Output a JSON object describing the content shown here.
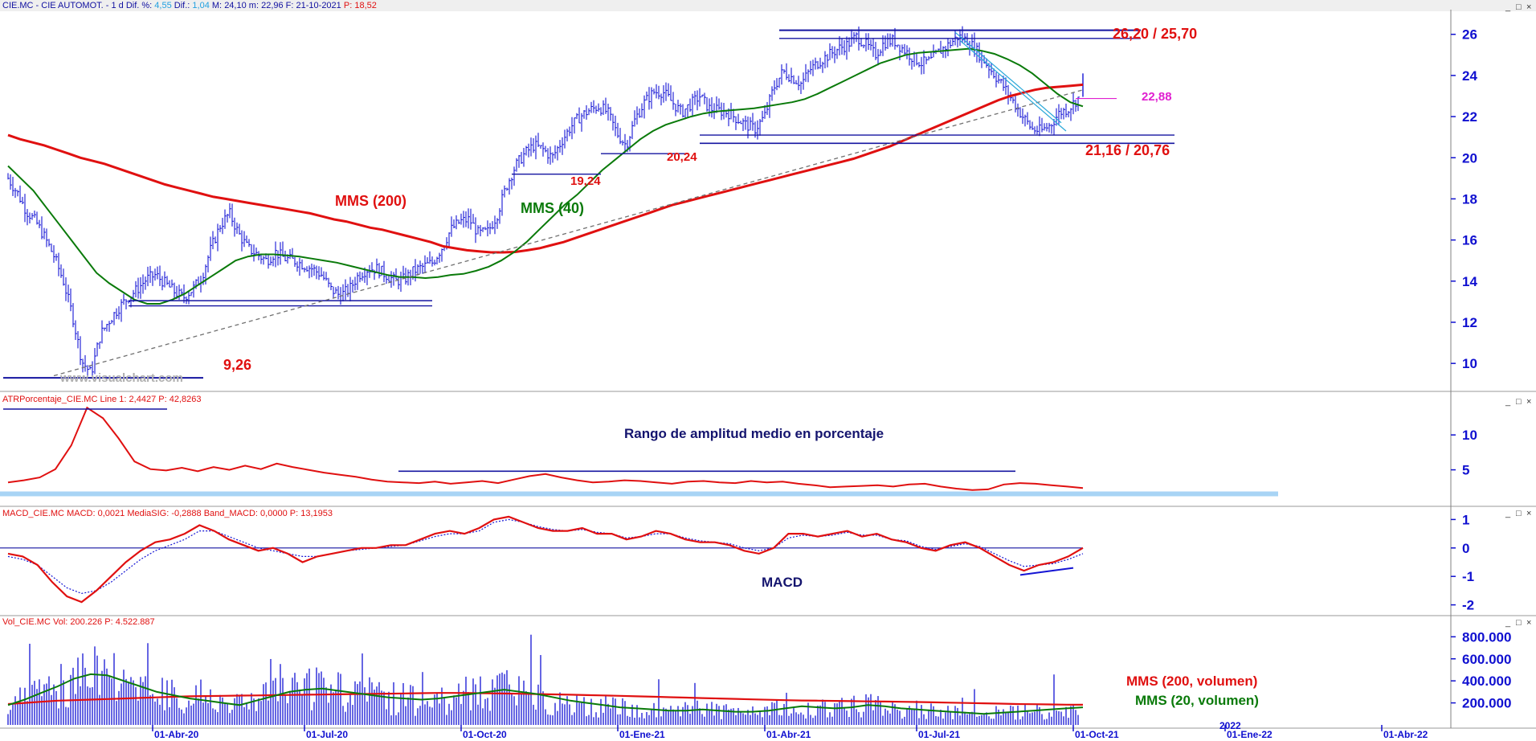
{
  "chart_data": [
    {
      "type": "ohlc",
      "name": "price",
      "header": {
        "symbol": "CIE.MC - CIE AUTOMOT. - 1 d",
        "dif_pct_label": "Dif. %:",
        "dif_pct": "4,55",
        "dif_label": "Dif.:",
        "dif": "1,04",
        "m_label": "M:",
        "m": "24,10",
        "m2_label": "m:",
        "m2": "22,96",
        "f_label": "F:",
        "f": "21-10-2021",
        "p_label": "P:",
        "p": "18,52"
      },
      "ylim": [
        8.6,
        27.2
      ],
      "yticks": [
        10,
        12,
        14,
        16,
        18,
        20,
        22,
        24,
        26
      ],
      "close": [
        19.0,
        18.3,
        17.4,
        16.9,
        16.1,
        15.2,
        14.0,
        12.3,
        10.1,
        9.5,
        11.4,
        12.1,
        12.7,
        13.2,
        13.6,
        14.1,
        14.3,
        13.9,
        13.5,
        13.2,
        13.6,
        14.2,
        15.6,
        16.7,
        17.3,
        16.3,
        15.6,
        15.3,
        15.0,
        15.4,
        15.1,
        15.0,
        14.8,
        14.6,
        14.3,
        13.6,
        13.3,
        13.6,
        14.3,
        14.6,
        14.6,
        14.3,
        14.0,
        14.1,
        14.5,
        14.7,
        14.9,
        15.6,
        16.5,
        16.9,
        17.0,
        16.3,
        16.4,
        17.2,
        18.6,
        19.6,
        20.2,
        20.6,
        20.4,
        20.0,
        20.8,
        21.5,
        22.0,
        22.3,
        22.5,
        22.2,
        21.2,
        20.6,
        21.9,
        22.7,
        23.2,
        23.2,
        22.7,
        22.2,
        22.6,
        23.0,
        22.4,
        22.3,
        22.2,
        21.9,
        21.6,
        21.4,
        22.0,
        23.4,
        24.2,
        23.9,
        23.6,
        24.3,
        24.7,
        25.0,
        25.3,
        25.5,
        25.9,
        25.5,
        25.0,
        25.6,
        25.7,
        25.3,
        24.9,
        24.6,
        24.7,
        25.2,
        25.5,
        25.9,
        25.7,
        25.2,
        24.6,
        24.0,
        23.4,
        22.7,
        22.0,
        21.4,
        21.3,
        21.6,
        22.2,
        22.4,
        22.9
      ],
      "sma200": [
        21.1,
        20.9,
        20.75,
        20.6,
        20.4,
        20.2,
        20.0,
        19.85,
        19.7,
        19.5,
        19.3,
        19.1,
        18.9,
        18.7,
        18.55,
        18.4,
        18.25,
        18.1,
        18.0,
        17.9,
        17.8,
        17.7,
        17.6,
        17.5,
        17.4,
        17.3,
        17.15,
        17.0,
        16.9,
        16.75,
        16.6,
        16.5,
        16.35,
        16.2,
        16.05,
        15.9,
        15.7,
        15.6,
        15.5,
        15.45,
        15.4,
        15.4,
        15.42,
        15.5,
        15.6,
        15.75,
        15.9,
        16.1,
        16.3,
        16.5,
        16.7,
        16.9,
        17.1,
        17.3,
        17.5,
        17.7,
        17.85,
        18.0,
        18.15,
        18.3,
        18.45,
        18.6,
        18.75,
        18.9,
        19.05,
        19.2,
        19.35,
        19.5,
        19.65,
        19.8,
        19.95,
        20.15,
        20.35,
        20.55,
        20.8,
        21.05,
        21.3,
        21.55,
        21.8,
        22.05,
        22.3,
        22.55,
        22.8,
        23.0,
        23.15,
        23.3,
        23.4,
        23.45,
        23.5,
        23.55
      ],
      "sma40": [
        19.6,
        19.0,
        18.4,
        17.6,
        16.8,
        16.0,
        15.2,
        14.4,
        13.9,
        13.5,
        13.1,
        12.9,
        12.9,
        13.1,
        13.4,
        13.8,
        14.2,
        14.6,
        15.0,
        15.2,
        15.3,
        15.3,
        15.25,
        15.2,
        15.1,
        15.0,
        14.9,
        14.75,
        14.6,
        14.45,
        14.3,
        14.2,
        14.2,
        14.15,
        14.2,
        14.3,
        14.35,
        14.5,
        14.7,
        15.0,
        15.4,
        15.9,
        16.5,
        17.1,
        17.7,
        18.2,
        18.8,
        19.4,
        19.9,
        20.4,
        20.9,
        21.3,
        21.6,
        21.8,
        22.0,
        22.15,
        22.25,
        22.3,
        22.35,
        22.4,
        22.5,
        22.6,
        22.7,
        22.85,
        23.1,
        23.4,
        23.7,
        24.0,
        24.3,
        24.6,
        24.8,
        25.0,
        25.1,
        25.15,
        25.2,
        25.25,
        25.3,
        25.2,
        25.05,
        24.8,
        24.5,
        24.1,
        23.6,
        23.1,
        22.7,
        22.5
      ]
    },
    {
      "type": "line",
      "name": "atr",
      "title": "ATRPorcentaje_CIE.MC",
      "line1_label": "Line 1:",
      "line1": "2,4427",
      "p_label": "P:",
      "p": "42,8263",
      "ylim": [
        0,
        15.2
      ],
      "yticks": [
        5,
        10
      ],
      "values": [
        3.2,
        3.5,
        3.9,
        5.1,
        8.5,
        13.9,
        12.4,
        9.5,
        6.2,
        5.1,
        4.9,
        5.3,
        4.8,
        5.4,
        5.0,
        5.6,
        5.1,
        5.9,
        5.4,
        5.0,
        4.6,
        4.3,
        4.0,
        3.6,
        3.3,
        3.2,
        3.1,
        3.3,
        3.0,
        3.2,
        3.4,
        3.1,
        3.6,
        4.1,
        4.4,
        3.9,
        3.5,
        3.2,
        3.3,
        3.5,
        3.4,
        3.2,
        3.0,
        3.3,
        3.4,
        3.2,
        3.1,
        3.4,
        3.2,
        3.3,
        3.0,
        2.8,
        2.5,
        2.6,
        2.7,
        2.8,
        2.6,
        2.9,
        3.0,
        2.6,
        2.3,
        2.1,
        2.2,
        2.9,
        3.1,
        3.0,
        2.8,
        2.6,
        2.4
      ]
    },
    {
      "type": "line",
      "name": "macd",
      "title": "MACD_CIE.MC",
      "macd_label": "MACD:",
      "macd": "0,0021",
      "sig_label": "MediaSIG:",
      "sig": "-0,2888",
      "band_label": "Band_MACD:",
      "band": "0,0000",
      "p_label": "P:",
      "p": "13,1953",
      "ylim": [
        -2.35,
        1.35
      ],
      "yticks": [
        -2,
        -1,
        0,
        1
      ],
      "macd_values": [
        -0.2,
        -0.3,
        -0.6,
        -1.2,
        -1.7,
        -1.9,
        -1.5,
        -1.0,
        -0.5,
        -0.1,
        0.2,
        0.3,
        0.5,
        0.8,
        0.6,
        0.3,
        0.1,
        -0.1,
        0.0,
        -0.2,
        -0.5,
        -0.3,
        -0.2,
        -0.1,
        0.0,
        0.0,
        0.1,
        0.1,
        0.3,
        0.5,
        0.6,
        0.5,
        0.7,
        1.0,
        1.1,
        0.9,
        0.7,
        0.6,
        0.6,
        0.7,
        0.5,
        0.5,
        0.3,
        0.4,
        0.6,
        0.5,
        0.3,
        0.2,
        0.2,
        0.1,
        -0.1,
        -0.2,
        0.0,
        0.5,
        0.5,
        0.4,
        0.5,
        0.6,
        0.4,
        0.5,
        0.3,
        0.2,
        0.0,
        -0.1,
        0.1,
        0.2,
        0.0,
        -0.3,
        -0.6,
        -0.8,
        -0.6,
        -0.5,
        -0.3,
        0.0
      ],
      "signal_values": [
        -0.3,
        -0.4,
        -0.6,
        -1.0,
        -1.4,
        -1.6,
        -1.5,
        -1.2,
        -0.8,
        -0.4,
        -0.1,
        0.1,
        0.3,
        0.6,
        0.6,
        0.4,
        0.2,
        0.0,
        -0.1,
        -0.2,
        -0.3,
        -0.3,
        -0.2,
        -0.1,
        -0.05,
        0.0,
        0.05,
        0.1,
        0.25,
        0.4,
        0.5,
        0.5,
        0.6,
        0.9,
        1.0,
        0.9,
        0.75,
        0.65,
        0.6,
        0.65,
        0.55,
        0.5,
        0.35,
        0.4,
        0.5,
        0.5,
        0.35,
        0.25,
        0.2,
        0.15,
        0.0,
        -0.1,
        0.0,
        0.35,
        0.45,
        0.4,
        0.45,
        0.55,
        0.45,
        0.45,
        0.3,
        0.25,
        0.05,
        -0.05,
        0.05,
        0.15,
        0.05,
        -0.2,
        -0.45,
        -0.65,
        -0.6,
        -0.55,
        -0.4,
        -0.2
      ]
    },
    {
      "type": "bar",
      "name": "volume",
      "title": "Vol_CIE.MC",
      "vol_label": "Vol:",
      "vol": "200.226",
      "p_label": "P:",
      "p": "4.522.887",
      "ylim": [
        0,
        890000
      ],
      "yticks": [
        "200.000",
        "400.000",
        "600.000",
        "800.000"
      ],
      "ytick_values": [
        200000,
        400000,
        600000,
        800000
      ],
      "vol_ma20": [
        180000,
        230000,
        290000,
        350000,
        420000,
        460000,
        450000,
        400000,
        350000,
        300000,
        270000,
        240000,
        220000,
        200000,
        180000,
        220000,
        260000,
        300000,
        320000,
        330000,
        310000,
        290000,
        270000,
        250000,
        240000,
        230000,
        240000,
        260000,
        280000,
        300000,
        320000,
        300000,
        280000,
        250000,
        220000,
        200000,
        180000,
        160000,
        150000,
        140000,
        130000,
        130000,
        140000,
        130000,
        120000,
        120000,
        130000,
        150000,
        170000,
        160000,
        150000,
        160000,
        180000,
        170000,
        150000,
        140000,
        130000,
        120000,
        110000,
        100000,
        110000,
        120000,
        130000,
        140000,
        150000,
        160000
      ],
      "vol_ma200": [
        190000,
        200000,
        210000,
        220000,
        225000,
        230000,
        235000,
        240000,
        245000,
        250000,
        255000,
        260000,
        262000,
        264000,
        266000,
        268000,
        270000,
        272000,
        274000,
        276000,
        278000,
        280000,
        282000,
        284000,
        286000,
        288000,
        290000,
        290000,
        289000,
        287000,
        285000,
        283000,
        280000,
        277000,
        274000,
        271000,
        268000,
        264000,
        260000,
        256000,
        252000,
        248000,
        244000,
        240000,
        236000,
        232000,
        228000,
        225000,
        222000,
        220000,
        218000,
        216000,
        214000,
        212000,
        210000,
        208000,
        205000,
        202000,
        199000,
        196000,
        193000,
        190000,
        188000,
        186000,
        184000,
        183000
      ]
    }
  ],
  "x_axis": {
    "ticks": [
      {
        "label": "01-Abr-20",
        "idx": 60
      },
      {
        "label": "01-Jul-20",
        "idx": 123
      },
      {
        "label": "01-Oct-20",
        "idx": 188
      },
      {
        "label": "01-Ene-21",
        "idx": 253
      },
      {
        "label": "01-Abr-21",
        "idx": 314
      },
      {
        "label": "01-Jul-21",
        "idx": 377
      },
      {
        "label": "01-Oct-21",
        "idx": 442
      },
      {
        "label": "01-Ene-22",
        "idx": 505
      },
      {
        "label": "01-Abr-22",
        "idx": 570
      }
    ],
    "year_label": "2022",
    "year_label_idx": 503
  },
  "annotations": {
    "resistance": "26,20 / 25,70",
    "pivot": "22,88",
    "support": "21,16 / 20,76",
    "low_2020": "9,26",
    "level_1": "19,24",
    "level_2": "20,24",
    "mms200": "MMS (200)",
    "mms40": "MMS (40)",
    "watermark": "www.visualchart.com",
    "atr_note": "Rango de amplitud medio en porcentaje",
    "macd_label": "MACD",
    "vol_mms200": "MMS (200, volumen)",
    "vol_mms20": "MMS (20, volumen)"
  },
  "colors": {
    "bars": "#1414d4",
    "sma200": "#e01010",
    "sma40": "#0a7a0a",
    "annotation_red": "#e01010",
    "magenta": "#e020d0",
    "axis_blue": "#1010d0",
    "band_blue": "#a8d4f5"
  },
  "window_controls": [
    "_",
    "□",
    "×"
  ]
}
